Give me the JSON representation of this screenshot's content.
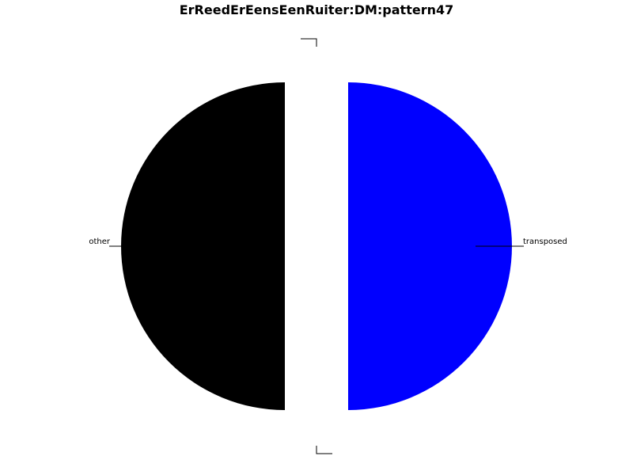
{
  "chart_data": {
    "type": "pie",
    "title": "ErReedErEensEenRuiter:DM:pattern47",
    "labels": [
      "transposed",
      "",
      "other",
      ""
    ],
    "values": [
      50,
      0,
      50,
      0
    ],
    "colors": [
      "#0000ff",
      "#808080",
      "#000000",
      "#ff0000"
    ],
    "legend": "none"
  }
}
